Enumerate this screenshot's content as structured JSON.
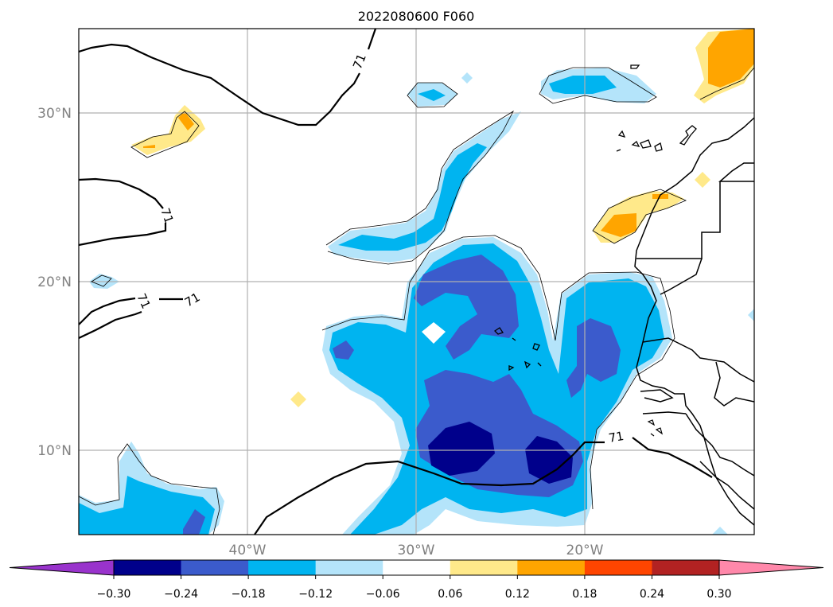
{
  "title": "2022080600 F060",
  "map": {
    "lat_labels": [
      "30°N",
      "20°N",
      "10°N"
    ],
    "lon_labels": [
      "40°W",
      "30°W",
      "20°W"
    ],
    "contour_labels": [
      "71",
      "71",
      "71",
      "71",
      "71"
    ],
    "colors": {
      "purple": "#9933cc",
      "navy": "#00008b",
      "royal_blue": "#3b5bcc",
      "deep_sky": "#00b4f0",
      "light_blue": "#b4e4fa",
      "white": "#ffffff",
      "light_yellow": "#ffe98a",
      "orange": "#ffa500",
      "orange_red": "#ff4500",
      "firebrick": "#b22222",
      "pink": "#ff88aa",
      "grid": "#b0b0b0"
    }
  },
  "colorbar": {
    "labels": [
      "−0.30",
      "−0.24",
      "−0.18",
      "−0.12",
      "−0.06",
      "0.06",
      "0.12",
      "0.18",
      "0.24",
      "0.30"
    ],
    "segment_colors": [
      "#00008b",
      "#3b5bcc",
      "#00b4f0",
      "#b4e4fa",
      "#ffffff",
      "#ffe98a",
      "#ffa500",
      "#ff4500",
      "#b22222"
    ],
    "under_color": "#9933cc",
    "over_color": "#ff88aa"
  }
}
